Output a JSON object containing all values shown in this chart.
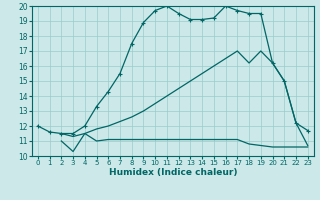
{
  "xlabel": "Humidex (Indice chaleur)",
  "bg_color": "#cce8e8",
  "grid_color": "#99cccc",
  "line_color": "#006666",
  "xlim": [
    -0.5,
    23.5
  ],
  "ylim": [
    10,
    20
  ],
  "xticks": [
    0,
    1,
    2,
    3,
    4,
    5,
    6,
    7,
    8,
    9,
    10,
    11,
    12,
    13,
    14,
    15,
    16,
    17,
    18,
    19,
    20,
    21,
    22,
    23
  ],
  "yticks": [
    10,
    11,
    12,
    13,
    14,
    15,
    16,
    17,
    18,
    19,
    20
  ],
  "c1x": [
    0,
    1,
    2,
    3,
    4,
    5,
    6,
    7,
    8,
    9,
    10,
    11,
    12,
    13,
    14,
    15,
    16,
    17,
    18,
    19,
    20,
    21,
    22,
    23
  ],
  "c1y": [
    12.0,
    11.6,
    11.5,
    11.5,
    12.0,
    13.3,
    14.3,
    15.5,
    17.5,
    18.9,
    19.7,
    20.0,
    19.5,
    19.1,
    19.1,
    19.2,
    20.0,
    19.7,
    19.5,
    19.5,
    16.2,
    15.0,
    12.2,
    11.7
  ],
  "c2x": [
    2,
    3,
    4,
    5,
    6,
    7,
    8,
    9,
    10,
    11,
    12,
    13,
    14,
    15,
    16,
    17,
    18,
    19,
    20,
    21,
    22,
    23
  ],
  "c2y": [
    11.0,
    10.3,
    11.5,
    11.0,
    11.1,
    11.1,
    11.1,
    11.1,
    11.1,
    11.1,
    11.1,
    11.1,
    11.1,
    11.1,
    11.1,
    11.1,
    10.8,
    10.7,
    10.6,
    10.6,
    10.6,
    10.6
  ],
  "c3x": [
    2,
    3,
    4,
    5,
    6,
    7,
    8,
    9,
    10,
    11,
    12,
    13,
    14,
    15,
    16,
    17,
    18,
    19,
    20,
    21,
    22,
    23
  ],
  "c3y": [
    11.5,
    11.3,
    11.5,
    11.8,
    12.0,
    12.3,
    12.6,
    13.0,
    13.5,
    14.0,
    14.5,
    15.0,
    15.5,
    16.0,
    16.5,
    17.0,
    16.2,
    17.0,
    16.2,
    15.0,
    12.2,
    10.7
  ]
}
